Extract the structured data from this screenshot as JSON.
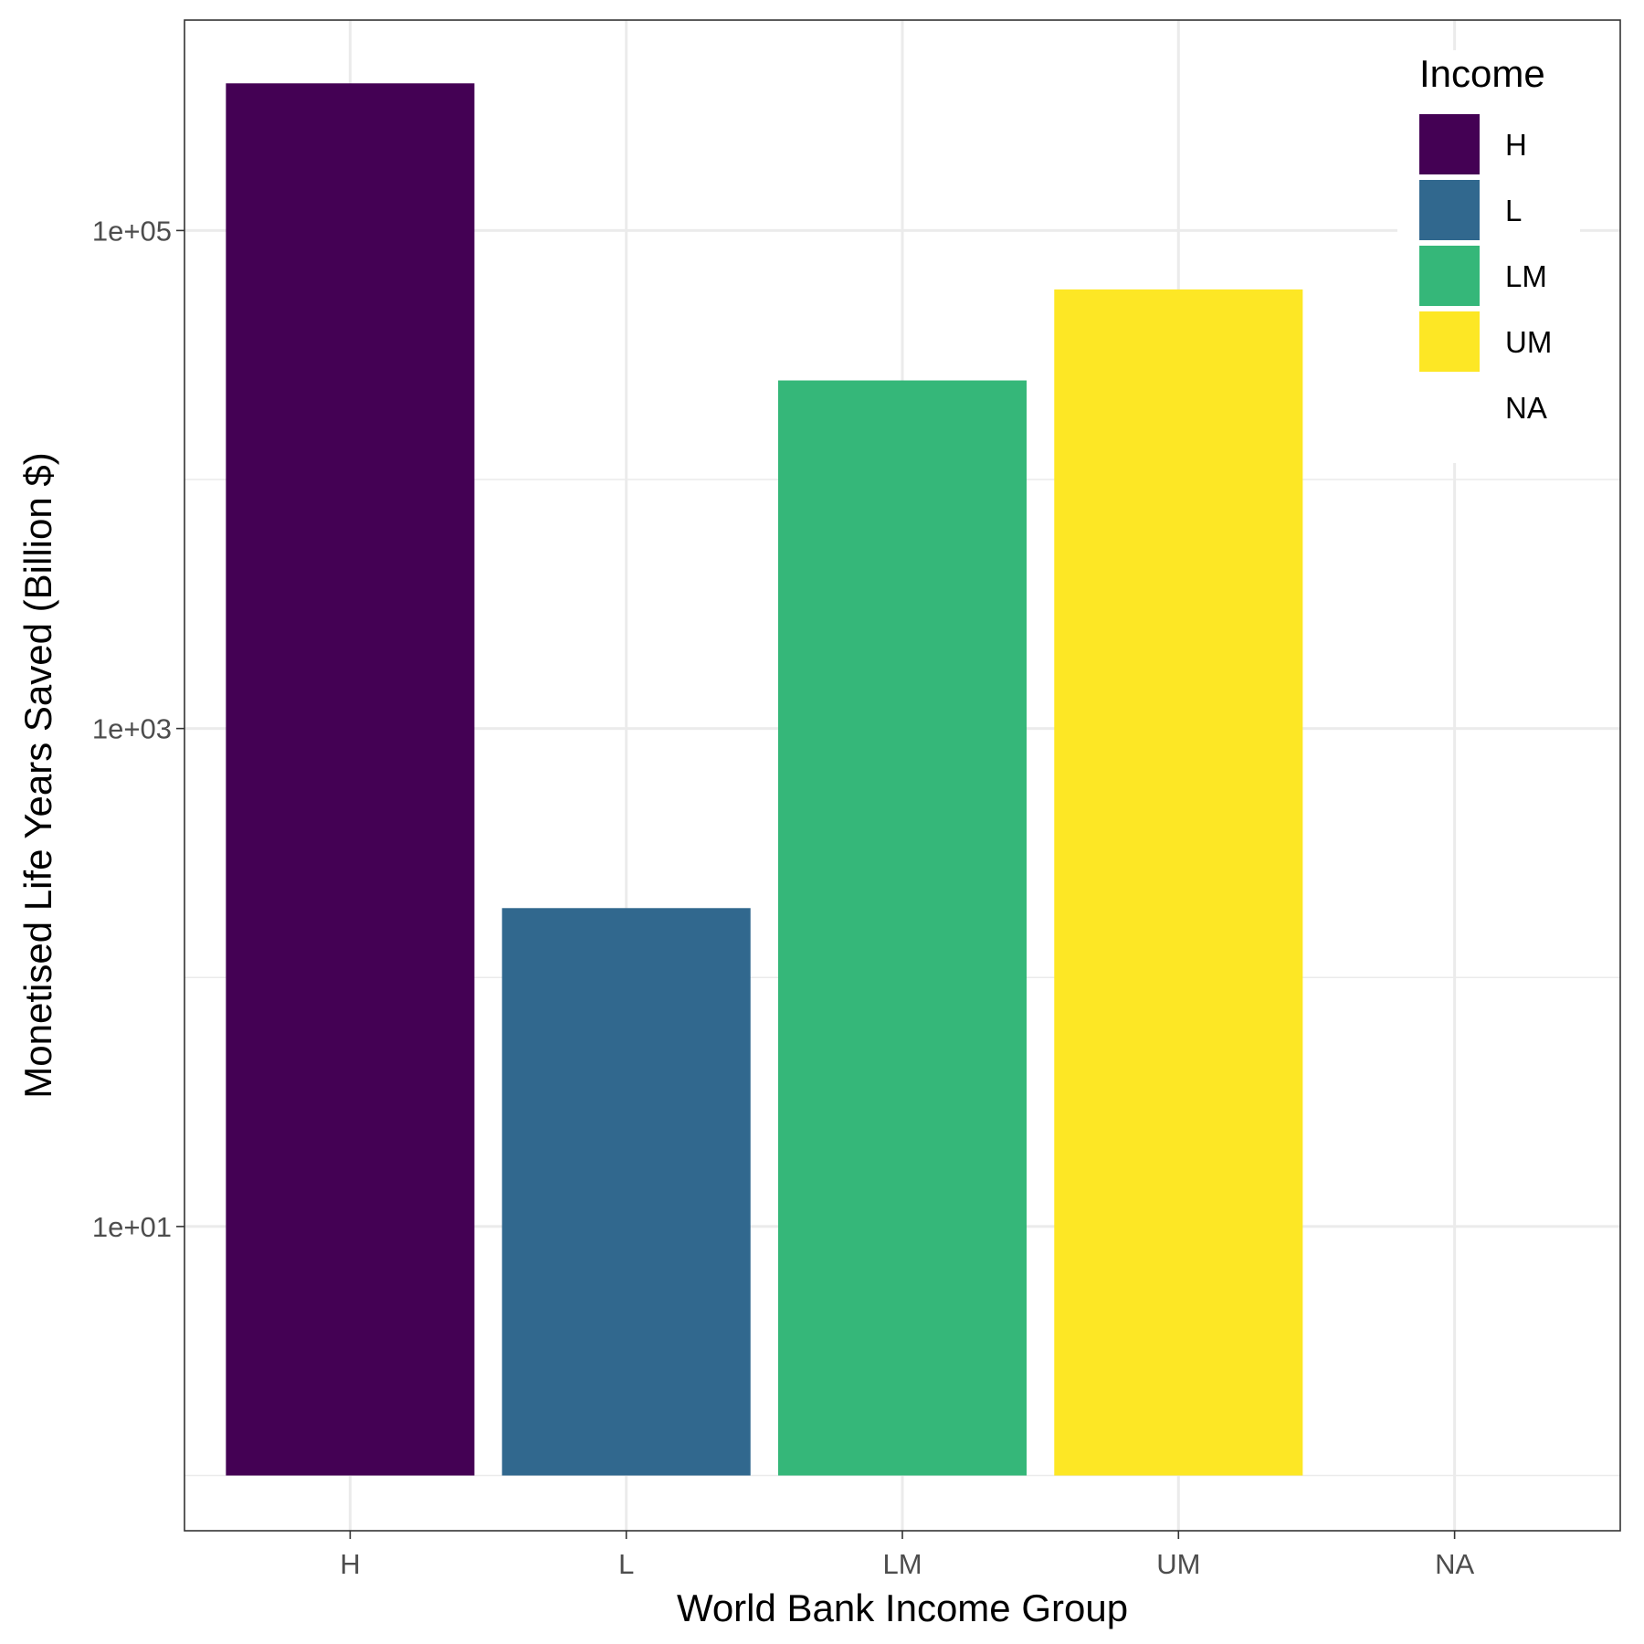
{
  "chart_data": {
    "type": "bar",
    "title": "",
    "xlabel": "World Bank Income Group",
    "ylabel": "Monetised Life Years Saved (Billion $)",
    "yscale": "log10",
    "ylim": [
      0.6,
      700000
    ],
    "bar_baseline": 1,
    "y_ticks": [
      {
        "value": 10,
        "label": "1e+01"
      },
      {
        "value": 1000,
        "label": "1e+03"
      },
      {
        "value": 100000,
        "label": "1e+05"
      }
    ],
    "categories": [
      "H",
      "L",
      "LM",
      "UM",
      "NA"
    ],
    "values": [
      390000,
      190,
      25000,
      58000,
      null
    ],
    "colors": [
      "#440154",
      "#31688E",
      "#35B779",
      "#FDE725",
      null
    ],
    "grid": true,
    "legend": {
      "title": "Income",
      "position": "right-inside-top",
      "entries": [
        {
          "label": "H",
          "color": "#440154"
        },
        {
          "label": "L",
          "color": "#31688E"
        },
        {
          "label": "LM",
          "color": "#35B779"
        },
        {
          "label": "UM",
          "color": "#FDE725"
        },
        {
          "label": "NA",
          "color": null
        }
      ]
    }
  }
}
